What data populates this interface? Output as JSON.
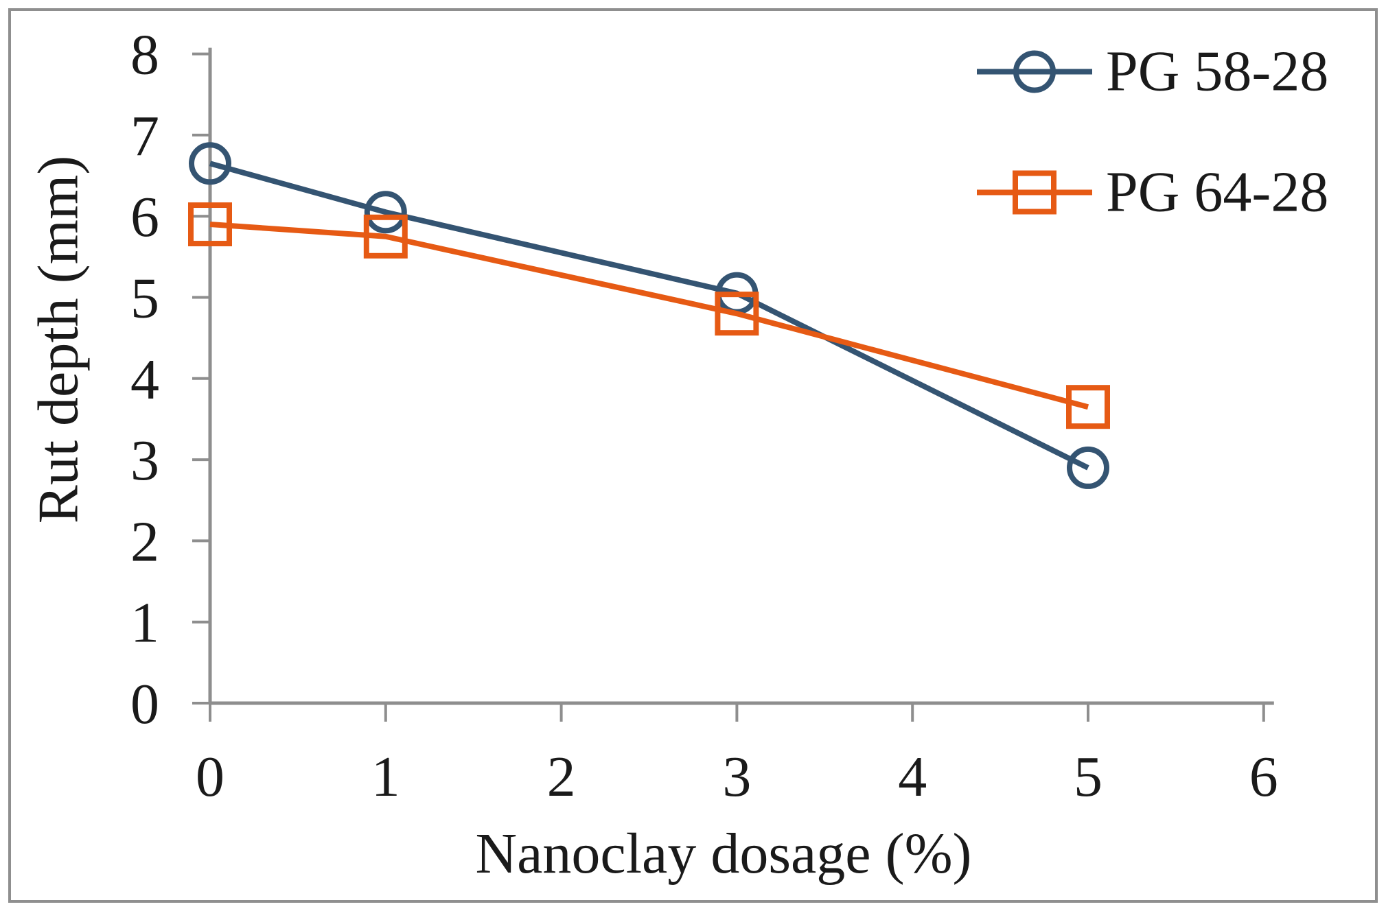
{
  "chart_data": {
    "type": "line",
    "xlabel": "Nanoclay dosage (%)",
    "ylabel": "Rut depth (mm)",
    "x": [
      0,
      1,
      3,
      5
    ],
    "series": [
      {
        "name": "PG 58-28",
        "marker": "circle",
        "color": "#345472",
        "values": [
          6.65,
          6.05,
          5.05,
          2.9
        ]
      },
      {
        "name": "PG 64-28",
        "marker": "square",
        "color": "#E65A14",
        "values": [
          5.9,
          5.75,
          4.8,
          3.65
        ]
      }
    ],
    "xlim": [
      0,
      6
    ],
    "ylim": [
      0,
      8
    ],
    "x_ticks": [
      0,
      1,
      2,
      3,
      4,
      5,
      6
    ],
    "y_ticks": [
      0,
      1,
      2,
      3,
      4,
      5,
      6,
      7,
      8
    ],
    "grid": false,
    "legend_position": "top-right",
    "axis_color": "#8e8e8e",
    "text_color": "#1a1a1a",
    "frame_color": "#8f8f8f"
  }
}
